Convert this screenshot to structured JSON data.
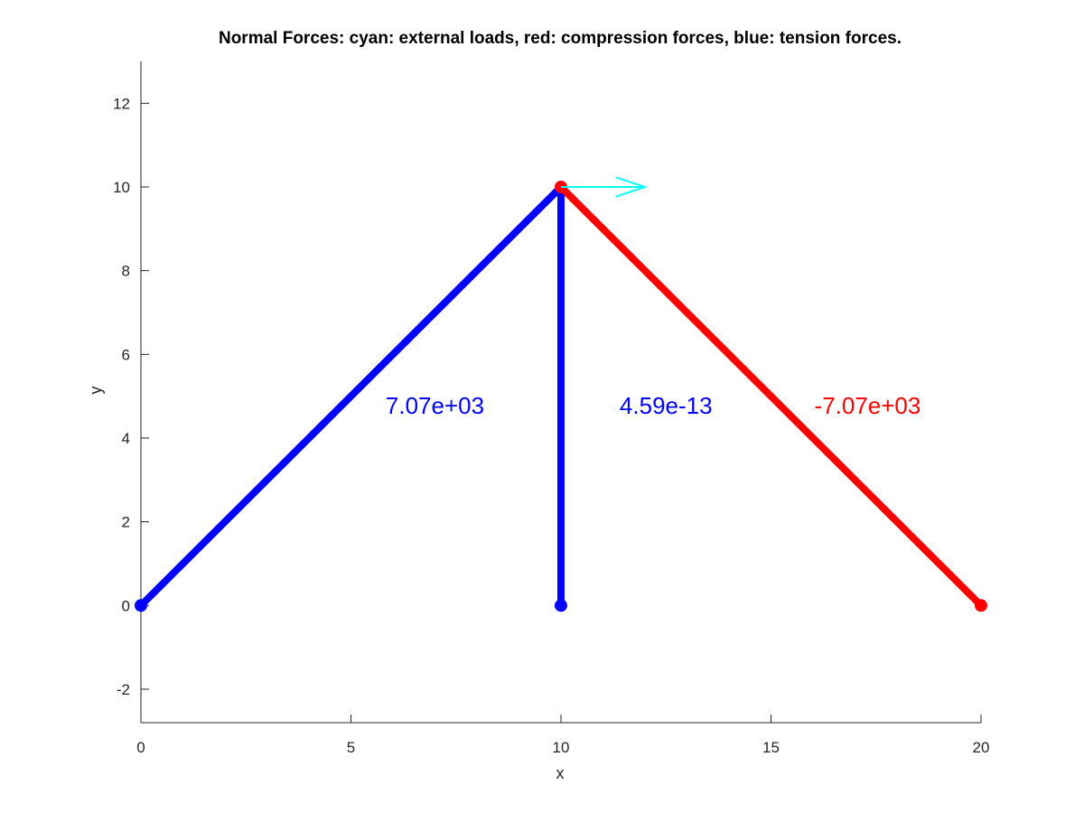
{
  "chart_data": {
    "type": "line",
    "title": "Normal Forces: cyan: external loads, red: compression forces, blue: tension forces.",
    "xlabel": "x",
    "ylabel": "y",
    "xlim": [
      0,
      20
    ],
    "ylim": [
      -2.8,
      13
    ],
    "xticks": [
      0,
      5,
      10,
      15,
      20
    ],
    "yticks": [
      -2,
      0,
      2,
      4,
      6,
      8,
      10,
      12
    ],
    "xtick_labels": [
      "0",
      "5",
      "10",
      "15",
      "20"
    ],
    "ytick_labels": [
      "-2",
      "0",
      "2",
      "4",
      "6",
      "8",
      "10",
      "12"
    ],
    "grid": false,
    "colors": {
      "tension": "#0000ff",
      "compression": "#ff0000",
      "external_load": "#00ffff",
      "axis": "#262626"
    },
    "members": [
      {
        "x": [
          0,
          10
        ],
        "y": [
          0,
          10
        ],
        "force": 7070,
        "label": "7.07e+03",
        "label_pos": [
          7.0,
          4.8
        ],
        "kind": "tension"
      },
      {
        "x": [
          10,
          10
        ],
        "y": [
          0,
          10
        ],
        "force": 4.59e-13,
        "label": "4.59e-13",
        "label_pos": [
          12.5,
          4.8
        ],
        "kind": "tension"
      },
      {
        "x": [
          10,
          20
        ],
        "y": [
          10,
          0
        ],
        "force": -7070,
        "label": "-7.07e+03",
        "label_pos": [
          17.3,
          4.8
        ],
        "kind": "compression"
      }
    ],
    "nodes": [
      {
        "x": 0,
        "y": 0,
        "kind": "tension"
      },
      {
        "x": 10,
        "y": 0,
        "kind": "tension"
      },
      {
        "x": 20,
        "y": 0,
        "kind": "compression"
      },
      {
        "x": 10,
        "y": 10,
        "kind": "compression"
      }
    ],
    "external_loads": [
      {
        "x": 10,
        "y": 10,
        "dx": 2,
        "dy": 0
      }
    ]
  }
}
